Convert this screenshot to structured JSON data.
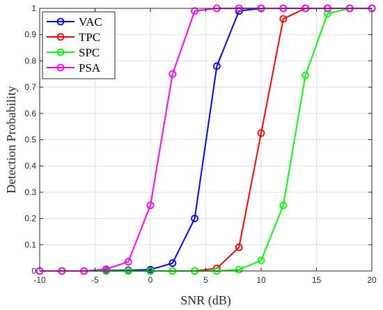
{
  "chart_data": {
    "type": "line",
    "title": "",
    "xlabel": "SNR (dB)",
    "ylabel": "Detection Probability",
    "xlim": [
      -10,
      20
    ],
    "ylim": [
      0,
      1
    ],
    "xticks": [
      -10,
      -5,
      0,
      5,
      10,
      15,
      20
    ],
    "yticks": [
      0,
      0.1,
      0.2,
      0.3,
      0.4,
      0.5,
      0.6,
      0.7,
      0.8,
      0.9,
      1
    ],
    "grid": true,
    "legend_position": "top-left",
    "x": [
      -10,
      -8,
      -6,
      -4,
      -2,
      0,
      2,
      4,
      6,
      8,
      10,
      12,
      14,
      16,
      18,
      20
    ],
    "series": [
      {
        "name": "VAC",
        "color": "#0000ff",
        "values": [
          0,
          0,
          0,
          0.002,
          0.003,
          0.005,
          0.03,
          0.2,
          0.78,
          0.99,
          1,
          1,
          1,
          1,
          1,
          1
        ]
      },
      {
        "name": "TPC",
        "color": "#ff0000",
        "values": [
          0,
          0,
          0,
          0,
          0,
          0,
          0,
          0,
          0.01,
          0.09,
          0.525,
          0.96,
          1,
          1,
          1,
          1
        ]
      },
      {
        "name": "SPC",
        "color": "#00ff00",
        "values": [
          0,
          0,
          0,
          0,
          0,
          0,
          0,
          0,
          0,
          0.005,
          0.04,
          0.25,
          0.745,
          0.98,
          1,
          1
        ]
      },
      {
        "name": "PSA",
        "color": "#ff00ff",
        "values": [
          0,
          0,
          0,
          0.007,
          0.035,
          0.25,
          0.75,
          0.99,
          1,
          1,
          1,
          1,
          1,
          1,
          1,
          1
        ]
      }
    ]
  }
}
